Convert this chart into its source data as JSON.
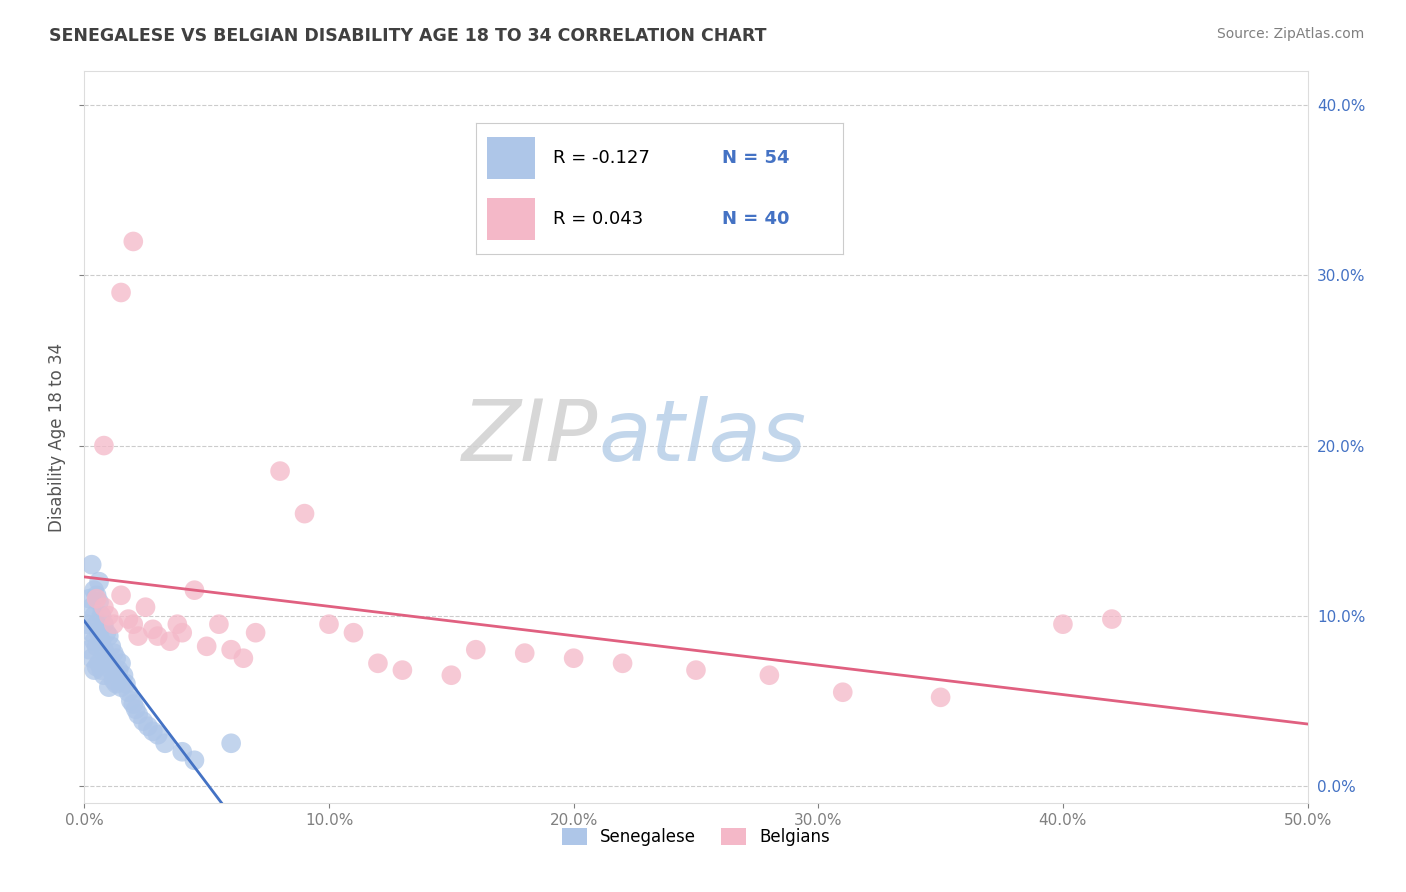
{
  "title": "SENEGALESE VS BELGIAN DISABILITY AGE 18 TO 34 CORRELATION CHART",
  "source": "Source: ZipAtlas.com",
  "ylabel": "Disability Age 18 to 34",
  "xlim": [
    0.0,
    0.5
  ],
  "ylim": [
    -0.01,
    0.42
  ],
  "xtick_vals": [
    0.0,
    0.1,
    0.2,
    0.3,
    0.4,
    0.5
  ],
  "ytick_vals": [
    0.0,
    0.1,
    0.2,
    0.3,
    0.4
  ],
  "grid_color": "#cccccc",
  "background_color": "#ffffff",
  "watermark_zip": "ZIP",
  "watermark_atlas": "atlas",
  "senegalese_color": "#aec6e8",
  "belgian_color": "#f4b8c8",
  "senegalese_line_color": "#4472c4",
  "belgian_line_color": "#e06080",
  "title_color": "#404040",
  "axis_label_color": "#555555",
  "tick_color": "#808080",
  "right_tick_color": "#4472c4",
  "source_color": "#808080",
  "legend_r1": "R = -0.127",
  "legend_n1": "N = 54",
  "legend_r2": "R = 0.043",
  "legend_n2": "N = 40",
  "senegalese_x": [
    0.001,
    0.002,
    0.002,
    0.003,
    0.003,
    0.003,
    0.004,
    0.004,
    0.004,
    0.005,
    0.005,
    0.005,
    0.005,
    0.006,
    0.006,
    0.006,
    0.007,
    0.007,
    0.007,
    0.008,
    0.008,
    0.008,
    0.009,
    0.009,
    0.01,
    0.01,
    0.01,
    0.011,
    0.011,
    0.012,
    0.012,
    0.013,
    0.013,
    0.014,
    0.015,
    0.015,
    0.016,
    0.017,
    0.018,
    0.019,
    0.02,
    0.021,
    0.022,
    0.024,
    0.026,
    0.028,
    0.03,
    0.033,
    0.04,
    0.045,
    0.003,
    0.004,
    0.006,
    0.06
  ],
  "senegalese_y": [
    0.095,
    0.11,
    0.08,
    0.105,
    0.09,
    0.075,
    0.1,
    0.085,
    0.068,
    0.112,
    0.095,
    0.082,
    0.07,
    0.108,
    0.09,
    0.072,
    0.1,
    0.085,
    0.068,
    0.095,
    0.08,
    0.065,
    0.09,
    0.075,
    0.088,
    0.072,
    0.058,
    0.082,
    0.068,
    0.078,
    0.062,
    0.075,
    0.06,
    0.068,
    0.072,
    0.058,
    0.065,
    0.06,
    0.055,
    0.05,
    0.048,
    0.045,
    0.042,
    0.038,
    0.035,
    0.032,
    0.03,
    0.025,
    0.02,
    0.015,
    0.13,
    0.115,
    0.12,
    0.025
  ],
  "belgian_x": [
    0.005,
    0.008,
    0.01,
    0.012,
    0.015,
    0.018,
    0.02,
    0.022,
    0.025,
    0.028,
    0.03,
    0.035,
    0.038,
    0.04,
    0.045,
    0.05,
    0.055,
    0.06,
    0.065,
    0.07,
    0.08,
    0.09,
    0.1,
    0.11,
    0.12,
    0.13,
    0.15,
    0.16,
    0.18,
    0.2,
    0.22,
    0.25,
    0.28,
    0.31,
    0.35,
    0.4,
    0.42,
    0.008,
    0.015,
    0.02
  ],
  "belgian_y": [
    0.11,
    0.105,
    0.1,
    0.095,
    0.112,
    0.098,
    0.095,
    0.088,
    0.105,
    0.092,
    0.088,
    0.085,
    0.095,
    0.09,
    0.115,
    0.082,
    0.095,
    0.08,
    0.075,
    0.09,
    0.185,
    0.16,
    0.095,
    0.09,
    0.072,
    0.068,
    0.065,
    0.08,
    0.078,
    0.075,
    0.072,
    0.068,
    0.065,
    0.055,
    0.052,
    0.095,
    0.098,
    0.2,
    0.29,
    0.32
  ]
}
